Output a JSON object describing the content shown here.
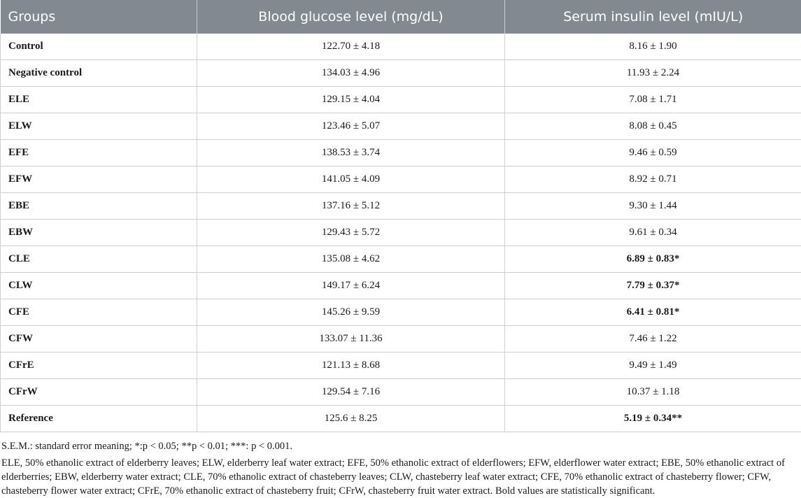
{
  "table": {
    "headers": [
      "Groups",
      "Blood glucose level (mg/dL)",
      "Serum insulin level (mIU/L)"
    ],
    "rows": [
      {
        "group": "Control",
        "glucose": "122.70 ± 4.18",
        "insulin": "8.16 ± 1.90",
        "insulin_bold": false
      },
      {
        "group": "Negative control",
        "glucose": "134.03 ± 4.96",
        "insulin": "11.93 ± 2.24",
        "insulin_bold": false
      },
      {
        "group": "ELE",
        "glucose": "129.15 ± 4.04",
        "insulin": "7.08 ± 1.71",
        "insulin_bold": false
      },
      {
        "group": "ELW",
        "glucose": "123.46 ± 5.07",
        "insulin": "8.08 ± 0.45",
        "insulin_bold": false
      },
      {
        "group": "EFE",
        "glucose": "138.53 ± 3.74",
        "insulin": "9.46 ± 0.59",
        "insulin_bold": false
      },
      {
        "group": "EFW",
        "glucose": "141.05 ± 4.09",
        "insulin": "8.92 ± 0.71",
        "insulin_bold": false
      },
      {
        "group": "EBE",
        "glucose": "137.16 ± 5.12",
        "insulin": "9.30 ± 1.44",
        "insulin_bold": false
      },
      {
        "group": "EBW",
        "glucose": "129.43 ± 5.72",
        "insulin": "9.61 ± 0.34",
        "insulin_bold": false
      },
      {
        "group": "CLE",
        "glucose": "135.08 ± 4.62",
        "insulin": "6.89 ± 0.83*",
        "insulin_bold": true
      },
      {
        "group": "CLW",
        "glucose": "149.17 ± 6.24",
        "insulin": "7.79 ± 0.37*",
        "insulin_bold": true
      },
      {
        "group": "CFE",
        "glucose": "145.26 ± 9.59",
        "insulin": "6.41 ± 0.81*",
        "insulin_bold": true
      },
      {
        "group": "CFW",
        "glucose": "133.07 ± 11.36",
        "insulin": "7.46 ± 1.22",
        "insulin_bold": false
      },
      {
        "group": "CFrE",
        "glucose": "121.13 ± 8.68",
        "insulin": "9.49 ± 1.49",
        "insulin_bold": false
      },
      {
        "group": "CFrW",
        "glucose": "129.54 ± 7.16",
        "insulin": "10.37 ± 1.18",
        "insulin_bold": false
      },
      {
        "group": "Reference",
        "glucose": "125.6 ± 8.25",
        "insulin": "5.19 ± 0.34**",
        "insulin_bold": true
      }
    ]
  },
  "footnotes": {
    "sem": "S.E.M.: standard error meaning; *:p < 0.05; **p < 0.01; ***: p < 0.001.",
    "abbreviations": "ELE, 50% ethanolic extract of elderberry leaves; ELW, elderberry leaf water extract; EFE, 50% ethanolic extract of elderflowers; EFW, elderflower water extract; EBE, 50% ethanolic extract of elderberries; EBW, elderberry water extract; CLE, 70% ethanolic extract of chasteberry leaves; CLW, chasteberry leaf water extract; CFE, 70% ethanolic extract of chasteberry flower; CFW, chasteberry flower water extract; CFrE, 70% ethanolic extract of chasteberry fruit; CFrW, chasteberry fruit water extract. Bold values are statistically significant."
  }
}
